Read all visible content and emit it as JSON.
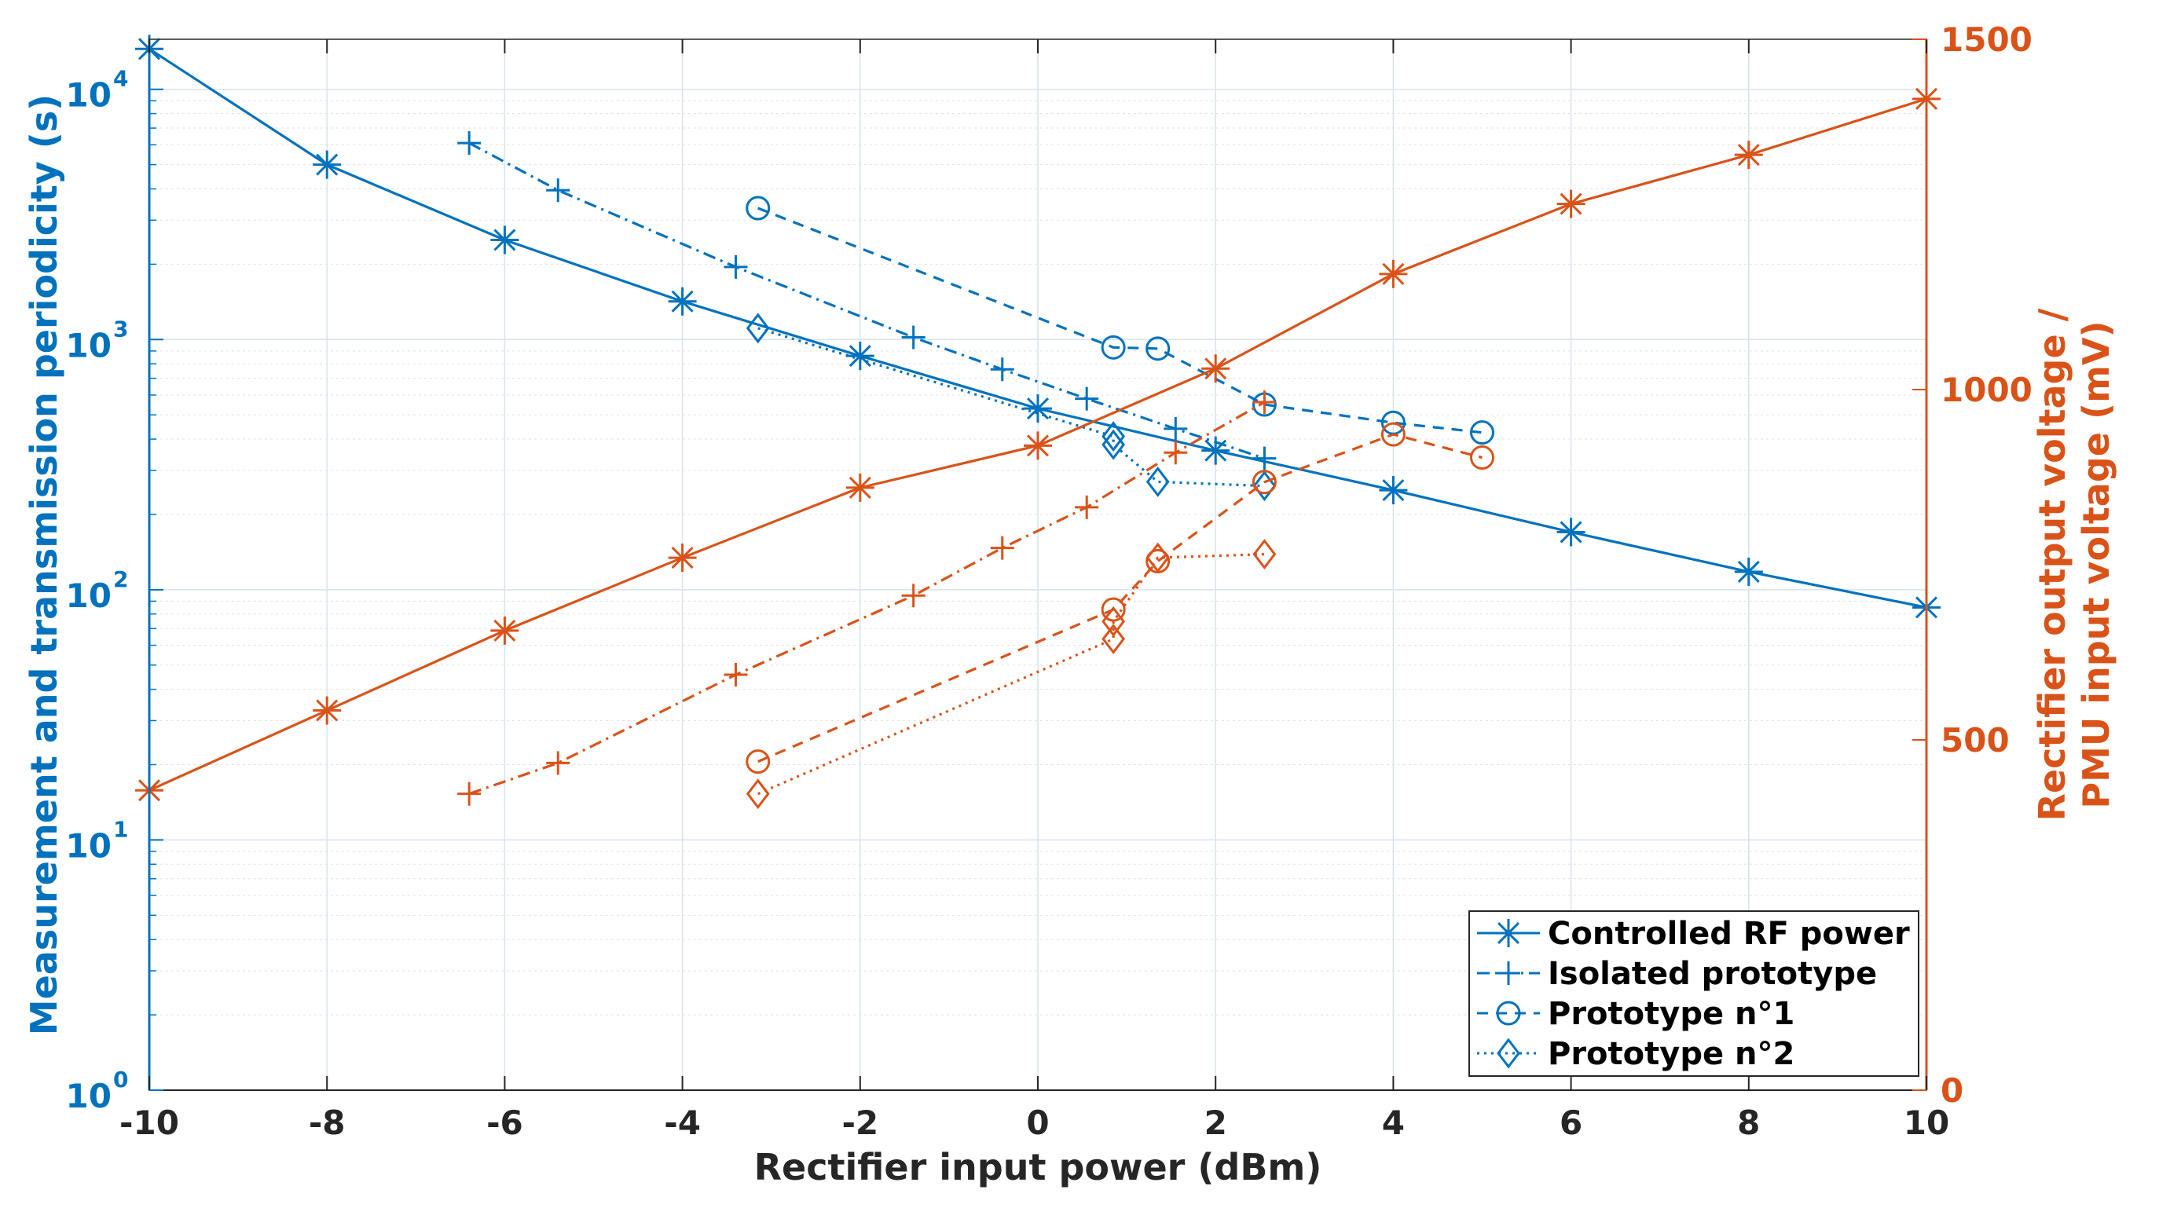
{
  "chart_data": {
    "type": "line",
    "xlabel": "Rectifier input power (dBm)",
    "ylabel_left": "Measurement and transmission periodicity (s)",
    "ylabel_right_lines": [
      "Rectifier output voltage /",
      "PMU input voltage (mV)"
    ],
    "xlim": [
      -10,
      10
    ],
    "xticks": [
      -10,
      -8,
      -6,
      -4,
      -2,
      0,
      2,
      4,
      6,
      8,
      10
    ],
    "ylim_left_log10": [
      0,
      4.2
    ],
    "yticks_left_exp": [
      0,
      1,
      2,
      3,
      4
    ],
    "ylim_right": [
      0,
      1500
    ],
    "yticks_right": [
      0,
      500,
      1000,
      1500
    ],
    "grid": true,
    "colors": {
      "left": "#0072BD",
      "right": "#D95319"
    },
    "legend": {
      "position": "bottom-right",
      "entries": [
        "Controlled RF power",
        "Isolated prototype",
        "Prototype n°1",
        "Prototype n°2"
      ]
    },
    "series": [
      {
        "name": "Controlled RF power",
        "axis": "left",
        "marker": "asterisk",
        "dash": "solid",
        "x": [
          -10,
          -8,
          -6,
          -4,
          -2,
          0,
          2,
          4,
          6,
          8,
          10
        ],
        "y": [
          14500,
          5000,
          2500,
          1420,
          860,
          530,
          360,
          250,
          170,
          118,
          85
        ]
      },
      {
        "name": "Isolated prototype",
        "axis": "left",
        "marker": "plus",
        "dash": "dashdot",
        "x": [
          -6.4,
          -5.4,
          -3.4,
          -1.4,
          -0.4,
          0.55,
          1.55,
          2.55
        ],
        "y": [
          6100,
          3950,
          1950,
          1020,
          760,
          580,
          440,
          335
        ]
      },
      {
        "name": "Prototype n°1",
        "axis": "left",
        "marker": "circle",
        "dash": "dashed",
        "x": [
          -3.15,
          0.85,
          1.35,
          2.55,
          4.0,
          5.0
        ],
        "y": [
          3350,
          930,
          920,
          550,
          465,
          425
        ]
      },
      {
        "name": "Prototype n°2",
        "axis": "left",
        "marker": "diamond",
        "dash": "dotted",
        "x": [
          -3.15,
          0.85,
          0.85,
          1.35,
          2.55
        ],
        "y": [
          1110,
          410,
          380,
          270,
          260
        ]
      },
      {
        "name": "Controlled RF power (voltage)",
        "axis": "right",
        "marker": "asterisk",
        "dash": "solid",
        "x": [
          -10,
          -8,
          -6,
          -4,
          -2,
          0,
          2,
          4,
          6,
          8,
          10
        ],
        "y": [
          428,
          542,
          656,
          760,
          860,
          920,
          1030,
          1165,
          1265,
          1335,
          1415
        ]
      },
      {
        "name": "Isolated prototype (voltage)",
        "axis": "right",
        "marker": "plus",
        "dash": "dashdot",
        "x": [
          -6.4,
          -5.4,
          -3.4,
          -1.4,
          -0.4,
          0.55,
          1.55,
          2.55
        ],
        "y": [
          423,
          467,
          593,
          706,
          774,
          832,
          910,
          982
        ]
      },
      {
        "name": "Prototype n°1 (voltage)",
        "axis": "right",
        "marker": "circle",
        "dash": "dashed",
        "x": [
          -3.15,
          0.85,
          1.35,
          2.55,
          4.0,
          5.0
        ],
        "y": [
          469,
          686,
          755,
          868,
          936,
          903
        ]
      },
      {
        "name": "Prototype n°2 (voltage)",
        "axis": "right",
        "marker": "diamond",
        "dash": "dotted",
        "x": [
          -3.15,
          0.85,
          0.85,
          1.35,
          2.55
        ],
        "y": [
          423,
          644,
          669,
          760,
          765
        ]
      }
    ]
  }
}
